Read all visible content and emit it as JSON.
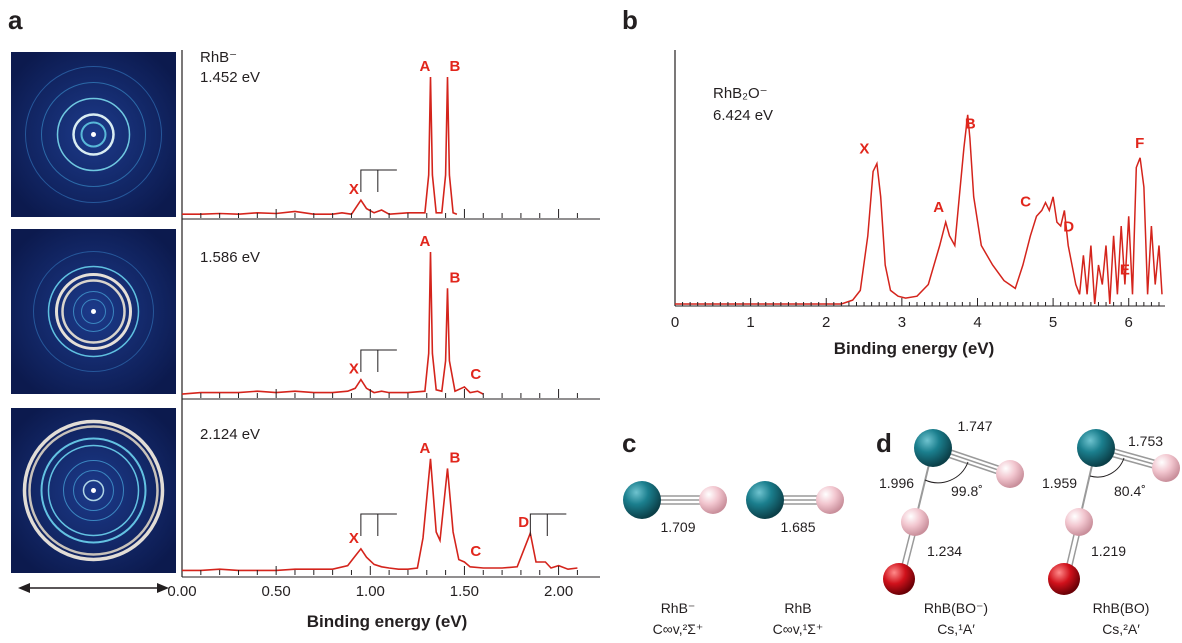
{
  "panel_labels": {
    "a": "a",
    "b": "b",
    "c": "c",
    "d": "d"
  },
  "colors": {
    "trace": "#d4241c",
    "peak_label": "#e1261c",
    "rh_atom": "#1b7f8e",
    "b_atom": "#f2c6cf",
    "o_atom": "#d0111b",
    "image_bg": "#10205a"
  },
  "chart_data": [
    {
      "type": "line",
      "panel": "a",
      "spectra": [
        {
          "species": "RhB⁻",
          "photon_energy": "1.452 eV",
          "peaks": [
            {
              "label": "X",
              "x": 0.95
            },
            {
              "label": "A",
              "x": 1.32
            },
            {
              "label": "B",
              "x": 1.41
            }
          ],
          "x": [
            0.0,
            0.1,
            0.2,
            0.3,
            0.4,
            0.5,
            0.6,
            0.7,
            0.8,
            0.85,
            0.9,
            0.95,
            0.98,
            1.02,
            1.06,
            1.1,
            1.2,
            1.29,
            1.31,
            1.32,
            1.33,
            1.35,
            1.38,
            1.4,
            1.41,
            1.42,
            1.44,
            1.46
          ],
          "y": [
            0.02,
            0.02,
            0.025,
            0.02,
            0.03,
            0.025,
            0.04,
            0.02,
            0.02,
            0.03,
            0.02,
            0.12,
            0.06,
            0.03,
            0.05,
            0.02,
            0.03,
            0.03,
            0.3,
            1.0,
            0.3,
            0.03,
            0.03,
            0.3,
            1.0,
            0.3,
            0.03,
            0.02
          ]
        },
        {
          "species": "",
          "photon_energy": "1.586 eV",
          "peaks": [
            {
              "label": "X",
              "x": 0.95
            },
            {
              "label": "A",
              "x": 1.32
            },
            {
              "label": "B",
              "x": 1.41
            },
            {
              "label": "C",
              "x": 1.5
            }
          ],
          "x": [
            0.0,
            0.1,
            0.2,
            0.3,
            0.4,
            0.5,
            0.6,
            0.7,
            0.8,
            0.88,
            0.92,
            0.95,
            0.98,
            1.02,
            1.06,
            1.1,
            1.2,
            1.29,
            1.31,
            1.32,
            1.33,
            1.35,
            1.38,
            1.4,
            1.41,
            1.42,
            1.45,
            1.5,
            1.53,
            1.57,
            1.6
          ],
          "y": [
            0.02,
            0.03,
            0.03,
            0.03,
            0.04,
            0.03,
            0.04,
            0.03,
            0.03,
            0.04,
            0.06,
            0.12,
            0.06,
            0.03,
            0.04,
            0.03,
            0.03,
            0.04,
            0.3,
            1.0,
            0.3,
            0.05,
            0.04,
            0.25,
            0.75,
            0.25,
            0.04,
            0.07,
            0.03,
            0.04,
            0.02
          ]
        },
        {
          "species": "",
          "photon_energy": "2.124 eV",
          "peaks": [
            {
              "label": "X",
              "x": 0.95
            },
            {
              "label": "A",
              "x": 1.32
            },
            {
              "label": "B",
              "x": 1.41
            },
            {
              "label": "C",
              "x": 1.5
            },
            {
              "label": "D",
              "x": 1.85
            }
          ],
          "x": [
            0.0,
            0.1,
            0.2,
            0.3,
            0.4,
            0.5,
            0.6,
            0.7,
            0.8,
            0.88,
            0.92,
            0.95,
            0.98,
            1.02,
            1.06,
            1.1,
            1.15,
            1.2,
            1.25,
            1.28,
            1.32,
            1.35,
            1.37,
            1.41,
            1.44,
            1.47,
            1.5,
            1.53,
            1.6,
            1.7,
            1.78,
            1.82,
            1.85,
            1.88,
            1.93,
            1.96,
            2.0,
            2.05,
            2.1
          ],
          "y": [
            0.03,
            0.03,
            0.04,
            0.03,
            0.03,
            0.03,
            0.04,
            0.04,
            0.04,
            0.07,
            0.15,
            0.21,
            0.14,
            0.08,
            0.06,
            0.05,
            0.04,
            0.04,
            0.05,
            0.3,
            0.96,
            0.35,
            0.28,
            0.88,
            0.35,
            0.12,
            0.1,
            0.06,
            0.05,
            0.05,
            0.06,
            0.22,
            0.34,
            0.1,
            0.1,
            0.05,
            0.07,
            0.04,
            0.05
          ]
        }
      ],
      "x_ticks": [
        "0.00",
        "0.50",
        "1.00",
        "1.50",
        "2.00"
      ],
      "xlim": [
        0.0,
        2.22
      ],
      "xlabel": "Binding energy (eV)"
    },
    {
      "type": "line",
      "panel": "b",
      "species": "RhB₂O⁻",
      "photon_energy": "6.424 eV",
      "peaks": [
        {
          "label": "X",
          "x": 2.65
        },
        {
          "label": "A",
          "x": 3.6
        },
        {
          "label": "B",
          "x": 3.9
        },
        {
          "label": "C",
          "x": 4.75
        },
        {
          "label": "D",
          "x": 5.2
        },
        {
          "label": "E",
          "x": 5.95
        },
        {
          "label": "F",
          "x": 6.15
        }
      ],
      "x": [
        0.0,
        2.2,
        2.35,
        2.45,
        2.55,
        2.62,
        2.67,
        2.72,
        2.78,
        2.85,
        2.95,
        3.05,
        3.2,
        3.35,
        3.5,
        3.58,
        3.63,
        3.7,
        3.76,
        3.82,
        3.87,
        3.9,
        3.95,
        4.05,
        4.2,
        4.35,
        4.5,
        4.6,
        4.7,
        4.78,
        4.85,
        4.9,
        4.95,
        5.0,
        5.05,
        5.1,
        5.15,
        5.2,
        5.25,
        5.3,
        5.35,
        5.4,
        5.45,
        5.5,
        5.55,
        5.6,
        5.65,
        5.7,
        5.75,
        5.8,
        5.85,
        5.9,
        5.95,
        6.0,
        6.05,
        6.1,
        6.15,
        6.2,
        6.25,
        6.3,
        6.35,
        6.4,
        6.44
      ],
      "y": [
        0.0,
        0.0,
        0.02,
        0.07,
        0.35,
        0.68,
        0.72,
        0.55,
        0.2,
        0.07,
        0.04,
        0.03,
        0.04,
        0.1,
        0.3,
        0.42,
        0.35,
        0.3,
        0.55,
        0.8,
        0.97,
        0.85,
        0.55,
        0.3,
        0.2,
        0.12,
        0.08,
        0.2,
        0.35,
        0.45,
        0.48,
        0.52,
        0.48,
        0.55,
        0.42,
        0.4,
        0.48,
        0.3,
        0.2,
        0.1,
        0.05,
        0.25,
        0.05,
        0.3,
        0.0,
        0.2,
        0.1,
        0.3,
        0.0,
        0.35,
        0.05,
        0.4,
        0.1,
        0.45,
        0.05,
        0.7,
        0.75,
        0.6,
        0.05,
        0.4,
        0.1,
        0.3,
        0.05
      ],
      "x_ticks": [
        "0",
        "1",
        "2",
        "3",
        "4",
        "5",
        "6"
      ],
      "xlim": [
        0.0,
        6.44
      ],
      "xlabel": "Binding energy (eV)"
    }
  ],
  "structures": [
    {
      "name": "RhB⁻",
      "symmetry": "C∞v,²Σ⁺",
      "bonds": {
        "rh_b": "1.709"
      }
    },
    {
      "name": "RhB",
      "symmetry": "C∞v,¹Σ⁺",
      "bonds": {
        "rh_b": "1.685"
      }
    },
    {
      "name": "RhB(BO⁻)",
      "symmetry": "Cs,¹A′",
      "bonds": {
        "rh_b": "1.747",
        "rh_bo": "1.996",
        "b_o": "1.234",
        "angle": "99.8˚"
      }
    },
    {
      "name": "RhB(BO)",
      "symmetry": "Cs,²A′",
      "bonds": {
        "rh_b": "1.753",
        "rh_bo": "1.959",
        "b_o": "1.219",
        "angle": "80.4˚"
      }
    }
  ]
}
